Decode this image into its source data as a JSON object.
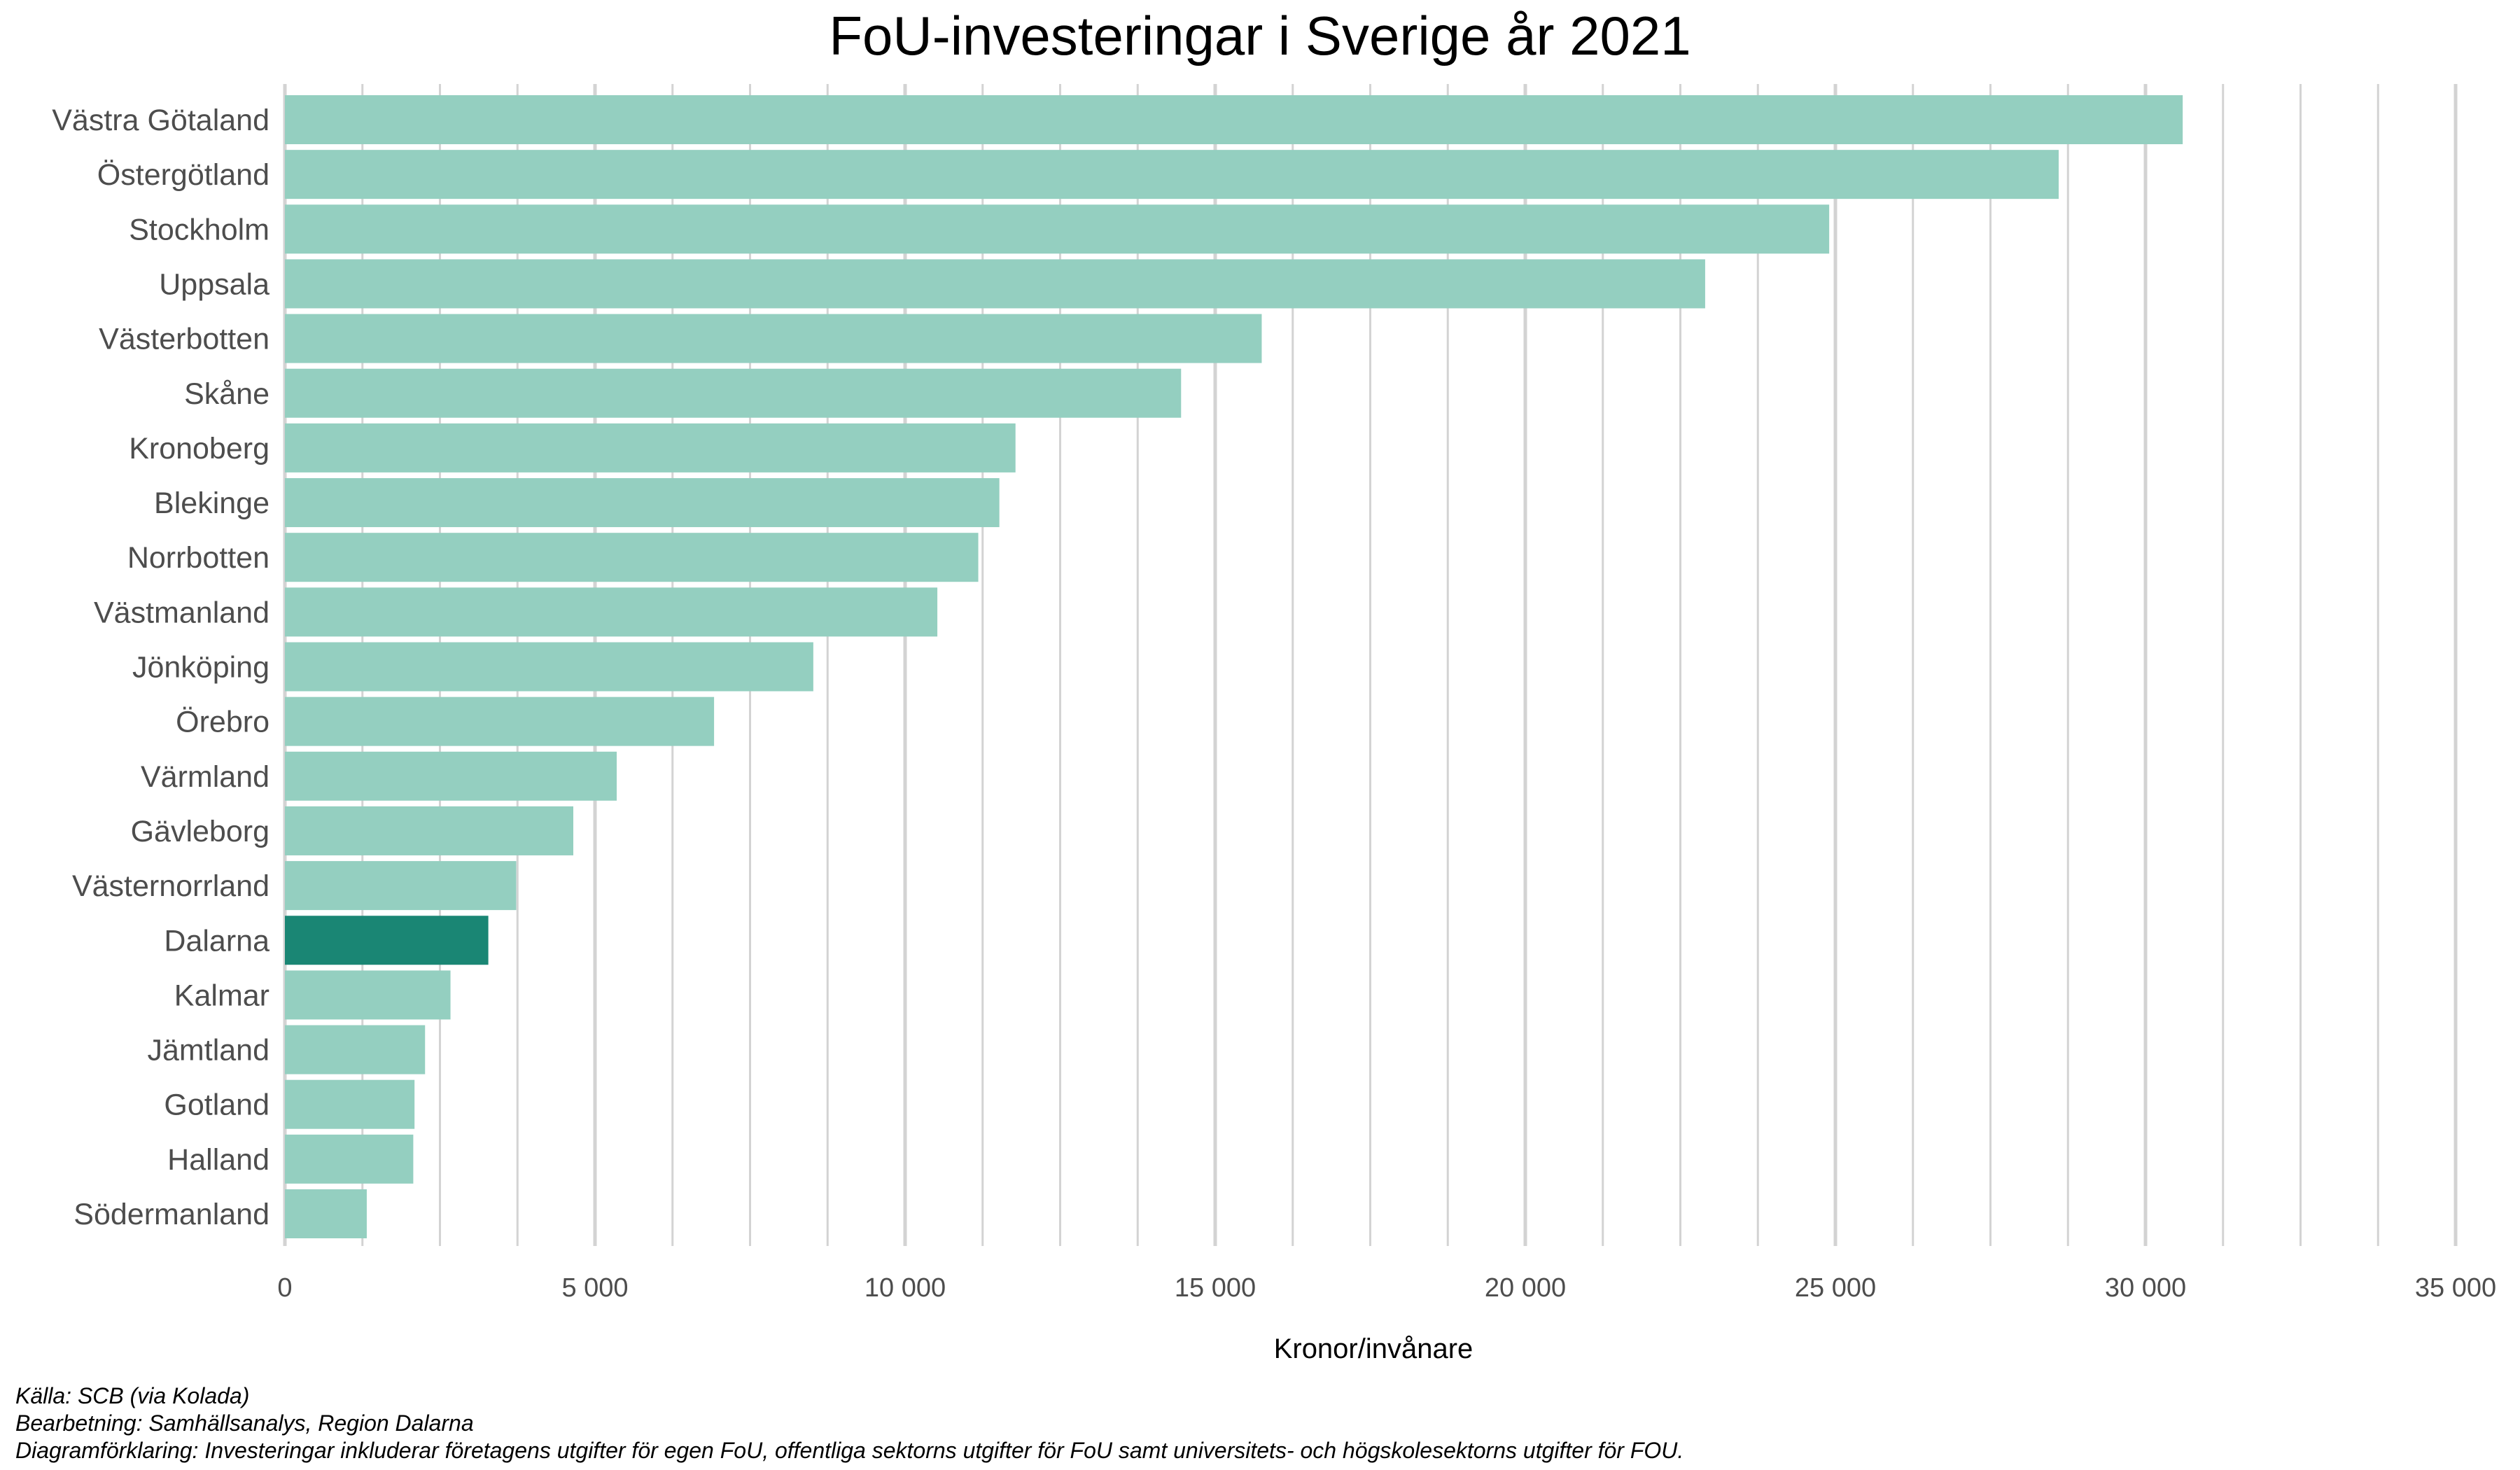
{
  "chart_data": {
    "type": "bar",
    "orientation": "horizontal",
    "title": "FoU-investeringar i Sverige år 2021",
    "xlabel": "Kronor/invånare",
    "ylabel": "",
    "xlim": [
      0,
      35000
    ],
    "x_ticks": [
      0,
      5000,
      10000,
      15000,
      20000,
      25000,
      30000,
      35000
    ],
    "x_tick_labels": [
      "0",
      "5 000",
      "10 000",
      "15 000",
      "20 000",
      "25 000",
      "30 000",
      "35 000"
    ],
    "grid": "vertical major and minor",
    "legend": "none",
    "categories": [
      "Västra Götaland",
      "Östergötland",
      "Stockholm",
      "Uppsala",
      "Västerbotten",
      "Skåne",
      "Kronoberg",
      "Blekinge",
      "Norrbotten",
      "Västmanland",
      "Jönköping",
      "Örebro",
      "Värmland",
      "Gävleborg",
      "Västernorrland",
      "Dalarna",
      "Kalmar",
      "Jämtland",
      "Gotland",
      "Halland",
      "Södermanland"
    ],
    "values": [
      30600,
      28600,
      24900,
      22900,
      15750,
      14450,
      11780,
      11520,
      11180,
      10520,
      8520,
      6920,
      5350,
      4650,
      3730,
      3280,
      2670,
      2260,
      2090,
      2070,
      1320
    ],
    "highlight": "Dalarna",
    "colors": {
      "bar": "#94cfc0",
      "highlight": "#1a8674",
      "grid": "#d3d3d3"
    }
  },
  "captions": {
    "source": "Källa: SCB (via Kolada)",
    "processing": "Bearbetning: Samhällsanalys, Region Dalarna",
    "explanation": "Diagramförklaring: Investeringar inkluderar företagens utgifter för egen FoU, offentliga sektorns utgifter för FoU samt universitets- och högskolesektorns utgifter för FOU."
  }
}
